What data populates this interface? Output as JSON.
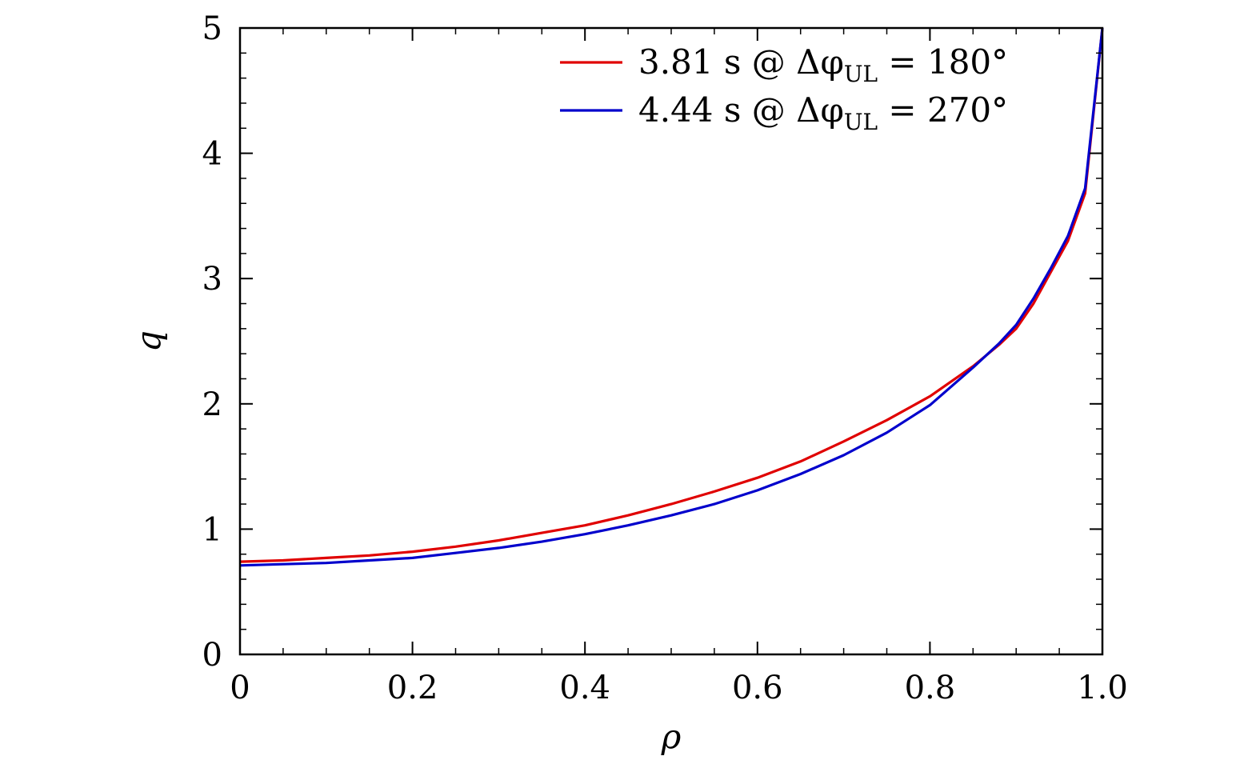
{
  "chart_data": {
    "type": "line",
    "title": "",
    "xlabel": "ρ",
    "ylabel": "q",
    "xlim": [
      0,
      1.0
    ],
    "ylim": [
      0,
      5
    ],
    "xticks": [
      0,
      0.2,
      0.4,
      0.6,
      0.8,
      1.0
    ],
    "xtick_labels": [
      "0",
      "0.2",
      "0.4",
      "0.6",
      "0.8",
      "1.0"
    ],
    "yticks": [
      0,
      1,
      2,
      3,
      4,
      5
    ],
    "ytick_labels": [
      "0",
      "1",
      "2",
      "3",
      "4",
      "5"
    ],
    "grid": false,
    "legend_position": "top-right",
    "series": [
      {
        "name": "3.81 s @ ΔφUL = 180°",
        "name_parts": {
          "prefix": "3.81 s @ Δφ",
          "sub": "UL",
          "suffix": " = 180°"
        },
        "color": "#e00000",
        "x": [
          0,
          0.05,
          0.1,
          0.15,
          0.2,
          0.25,
          0.3,
          0.35,
          0.4,
          0.45,
          0.5,
          0.55,
          0.6,
          0.65,
          0.7,
          0.75,
          0.8,
          0.85,
          0.88,
          0.9,
          0.92,
          0.94,
          0.96,
          0.98,
          1.0
        ],
        "y": [
          0.74,
          0.75,
          0.77,
          0.79,
          0.82,
          0.86,
          0.91,
          0.97,
          1.03,
          1.11,
          1.2,
          1.3,
          1.41,
          1.54,
          1.7,
          1.87,
          2.06,
          2.3,
          2.47,
          2.6,
          2.8,
          3.05,
          3.3,
          3.68,
          5.0
        ]
      },
      {
        "name": "4.44 s @ ΔφUL = 270°",
        "name_parts": {
          "prefix": "4.44 s @ Δφ",
          "sub": "UL",
          "suffix": " = 270°"
        },
        "color": "#0000cc",
        "x": [
          0,
          0.05,
          0.1,
          0.15,
          0.2,
          0.25,
          0.3,
          0.35,
          0.4,
          0.45,
          0.5,
          0.55,
          0.6,
          0.65,
          0.7,
          0.75,
          0.8,
          0.85,
          0.88,
          0.9,
          0.92,
          0.94,
          0.96,
          0.98,
          1.0
        ],
        "y": [
          0.71,
          0.72,
          0.73,
          0.75,
          0.77,
          0.81,
          0.85,
          0.9,
          0.96,
          1.03,
          1.11,
          1.2,
          1.31,
          1.44,
          1.59,
          1.77,
          1.99,
          2.29,
          2.48,
          2.63,
          2.84,
          3.08,
          3.34,
          3.72,
          5.0
        ]
      }
    ]
  }
}
